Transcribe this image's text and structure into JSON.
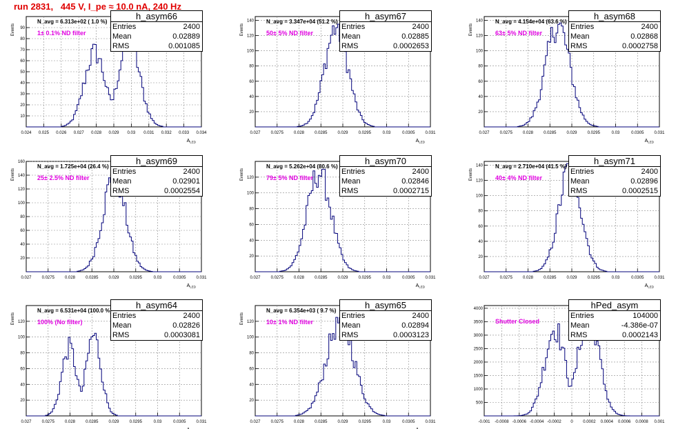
{
  "page_title": "run 2831,   445 V, I_pe ≈ 10.0 nA, 240 Hz",
  "chart_data": [
    {
      "type": "histogram",
      "name": "h_asym66",
      "stats": {
        "entries_label": "Entries",
        "entries": "2400",
        "mean_label": "Mean",
        "mean": "0.02889",
        "rms_label": "RMS",
        "rms": "0.001085"
      },
      "navg_text": "N_avg = 6.313e+02 ( 1.0 %)",
      "filter_label": "1± 0.1% ND filter",
      "ylabel": "Events",
      "xlabel": "A_{LED}",
      "xlim": [
        0.024,
        0.034
      ],
      "ylim": [
        0,
        100
      ],
      "xticks": [
        "0.024",
        "0.025",
        "0.026",
        "0.027",
        "0.028",
        "0.029",
        "0.03",
        "0.031",
        "0.032",
        "0.033",
        "0.034"
      ],
      "yticks": [
        "10",
        "20",
        "30",
        "40",
        "50",
        "60",
        "70",
        "80",
        "90"
      ],
      "mean": 0.02889,
      "sigma": 0.001085,
      "peak": 82,
      "bimodal": true,
      "nbins": 100
    },
    {
      "type": "histogram",
      "name": "h_asym67",
      "stats": {
        "entries_label": "Entries",
        "entries": "2400",
        "mean_label": "Mean",
        "mean": "0.02885",
        "rms_label": "RMS",
        "rms": "0.0002653"
      },
      "navg_text": "N_avg = 3.347e+04 (51.2 %)",
      "filter_label": "50± 5% ND filter",
      "ylabel": "Events",
      "xlabel": "A_{LED}",
      "xlim": [
        0.027,
        0.031
      ],
      "ylim": [
        0,
        145
      ],
      "xticks": [
        "0.027",
        "0.0275",
        "0.028",
        "0.0285",
        "0.029",
        "0.0295",
        "0.03",
        "0.0305",
        "0.031"
      ],
      "yticks": [
        "20",
        "40",
        "60",
        "80",
        "100",
        "120",
        "140"
      ],
      "mean": 0.02885,
      "sigma": 0.0002653,
      "peak": 135,
      "bimodal": false,
      "nbins": 100
    },
    {
      "type": "histogram",
      "name": "h_asym68",
      "stats": {
        "entries_label": "Entries",
        "entries": "2400",
        "mean_label": "Mean",
        "mean": "0.02868",
        "rms_label": "RMS",
        "rms": "0.0002758"
      },
      "navg_text": "N_avg = 4.154e+04 (63.6 %)",
      "filter_label": "63± 5% ND filter",
      "ylabel": "Events",
      "xlabel": "A_{LED}",
      "xlim": [
        0.027,
        0.031
      ],
      "ylim": [
        0,
        145
      ],
      "xticks": [
        "0.027",
        "0.0275",
        "0.028",
        "0.0285",
        "0.029",
        "0.0295",
        "0.03",
        "0.0305",
        "0.031"
      ],
      "yticks": [
        "20",
        "40",
        "60",
        "80",
        "100",
        "120",
        "140"
      ],
      "mean": 0.02868,
      "sigma": 0.0002758,
      "peak": 138,
      "bimodal": false,
      "nbins": 100
    },
    {
      "type": "histogram",
      "name": "h_asym69",
      "stats": {
        "entries_label": "Entries",
        "entries": "2400",
        "mean_label": "Mean",
        "mean": "0.02901",
        "rms_label": "RMS",
        "rms": "0.0002554"
      },
      "navg_text": "N_avg = 1.725e+04 (26.4 %)",
      "filter_label": "25± 2.5% ND filter",
      "ylabel": "Events",
      "xlabel": "A_{LED}",
      "xlim": [
        0.027,
        0.031
      ],
      "ylim": [
        0,
        160
      ],
      "xticks": [
        "0.027",
        "0.0275",
        "0.028",
        "0.0285",
        "0.029",
        "0.0295",
        "0.03",
        "0.0305",
        "0.031"
      ],
      "yticks": [
        "20",
        "40",
        "60",
        "80",
        "100",
        "120",
        "140",
        "160"
      ],
      "mean": 0.02901,
      "sigma": 0.0002554,
      "peak": 145,
      "bimodal": false,
      "nbins": 100
    },
    {
      "type": "histogram",
      "name": "h_asym70",
      "stats": {
        "entries_label": "Entries",
        "entries": "2400",
        "mean_label": "Mean",
        "mean": "0.02846",
        "rms_label": "RMS",
        "rms": "0.0002715"
      },
      "navg_text": "N_avg = 5.262e+04 (80.6 %)",
      "filter_label": "79± 5% ND filter",
      "ylabel": "Events",
      "xlabel": "A_{LED}",
      "xlim": [
        0.027,
        0.031
      ],
      "ylim": [
        0,
        140
      ],
      "xticks": [
        "0.027",
        "0.0275",
        "0.028",
        "0.0285",
        "0.029",
        "0.0295",
        "0.03",
        "0.0305",
        "0.031"
      ],
      "yticks": [
        "20",
        "40",
        "60",
        "80",
        "100",
        "120"
      ],
      "mean": 0.02846,
      "sigma": 0.0002715,
      "peak": 130,
      "bimodal": false,
      "nbins": 100
    },
    {
      "type": "histogram",
      "name": "h_asym71",
      "stats": {
        "entries_label": "Entries",
        "entries": "2400",
        "mean_label": "Mean",
        "mean": "0.02896",
        "rms_label": "RMS",
        "rms": "0.0002515"
      },
      "navg_text": "N_avg = 2.710e+04 (41.5 %)",
      "filter_label": "40± 4% ND filter",
      "ylabel": "Events",
      "xlabel": "A_{LED}",
      "xlim": [
        0.027,
        0.031
      ],
      "ylim": [
        0,
        145
      ],
      "xticks": [
        "0.027",
        "0.0275",
        "0.028",
        "0.0285",
        "0.029",
        "0.0295",
        "0.03",
        "0.0305",
        "0.031"
      ],
      "yticks": [
        "20",
        "40",
        "60",
        "80",
        "100",
        "120",
        "140"
      ],
      "mean": 0.02896,
      "sigma": 0.0002515,
      "peak": 142,
      "bimodal": false,
      "nbins": 100
    },
    {
      "type": "histogram",
      "name": "h_asym64",
      "stats": {
        "entries_label": "Entries",
        "entries": "2400",
        "mean_label": "Mean",
        "mean": "0.02826",
        "rms_label": "RMS",
        "rms": "0.0003081"
      },
      "navg_text": "N_avg = 6.531e+04 (100.0 %)",
      "filter_label": "100% (No filter)",
      "ylabel": "Events",
      "xlabel": "A_{LED}",
      "xlim": [
        0.027,
        0.031
      ],
      "ylim": [
        0,
        140
      ],
      "xticks": [
        "0.027",
        "0.0275",
        "0.028",
        "0.0285",
        "0.029",
        "0.0295",
        "0.03",
        "0.0305",
        "0.031"
      ],
      "yticks": [
        "20",
        "40",
        "60",
        "80",
        "100",
        "120"
      ],
      "mean": 0.02826,
      "sigma": 0.0003081,
      "peak": 105,
      "bimodal": true,
      "nbins": 100
    },
    {
      "type": "histogram",
      "name": "h_asym65",
      "stats": {
        "entries_label": "Entries",
        "entries": "2400",
        "mean_label": "Mean",
        "mean": "0.02894",
        "rms_label": "RMS",
        "rms": "0.0003123"
      },
      "navg_text": "N_avg = 6.354e+03 ( 9.7 %)",
      "filter_label": "10± 1% ND filter",
      "ylabel": "Events",
      "xlabel": "A_{LED}",
      "xlim": [
        0.027,
        0.031
      ],
      "ylim": [
        0,
        140
      ],
      "xticks": [
        "0.027",
        "0.0275",
        "0.028",
        "0.0285",
        "0.029",
        "0.0295",
        "0.03",
        "0.0305",
        "0.031"
      ],
      "yticks": [
        "20",
        "40",
        "60",
        "80",
        "100",
        "120"
      ],
      "mean": 0.02894,
      "sigma": 0.0003123,
      "peak": 125,
      "bimodal": false,
      "nbins": 100
    },
    {
      "type": "histogram",
      "name": "hPed_asym",
      "stats": {
        "entries_label": "Entries",
        "entries": "104000",
        "mean_label": "Mean",
        "mean": "-4.386e-07",
        "rms_label": "RMS",
        "rms": "0.0002143"
      },
      "navg_text": "",
      "filter_label": "Shutter Closed",
      "ylabel": "",
      "xlabel": "",
      "xlim": [
        -0.001,
        0.001
      ],
      "ylim": [
        0,
        4100
      ],
      "xticks": [
        "-0.001",
        "-0.0008",
        "-0.0006",
        "-0.0004",
        "-0.0002",
        "0",
        "0.0002",
        "0.0004",
        "0.0006",
        "0.0008",
        "0.001"
      ],
      "yticks": [
        "500",
        "1000",
        "1500",
        "2000",
        "2500",
        "3000",
        "3500",
        "4000"
      ],
      "mean": -4.386e-07,
      "sigma": 0.0002143,
      "peak": 3950,
      "bimodal": true,
      "nbins": 100
    }
  ]
}
